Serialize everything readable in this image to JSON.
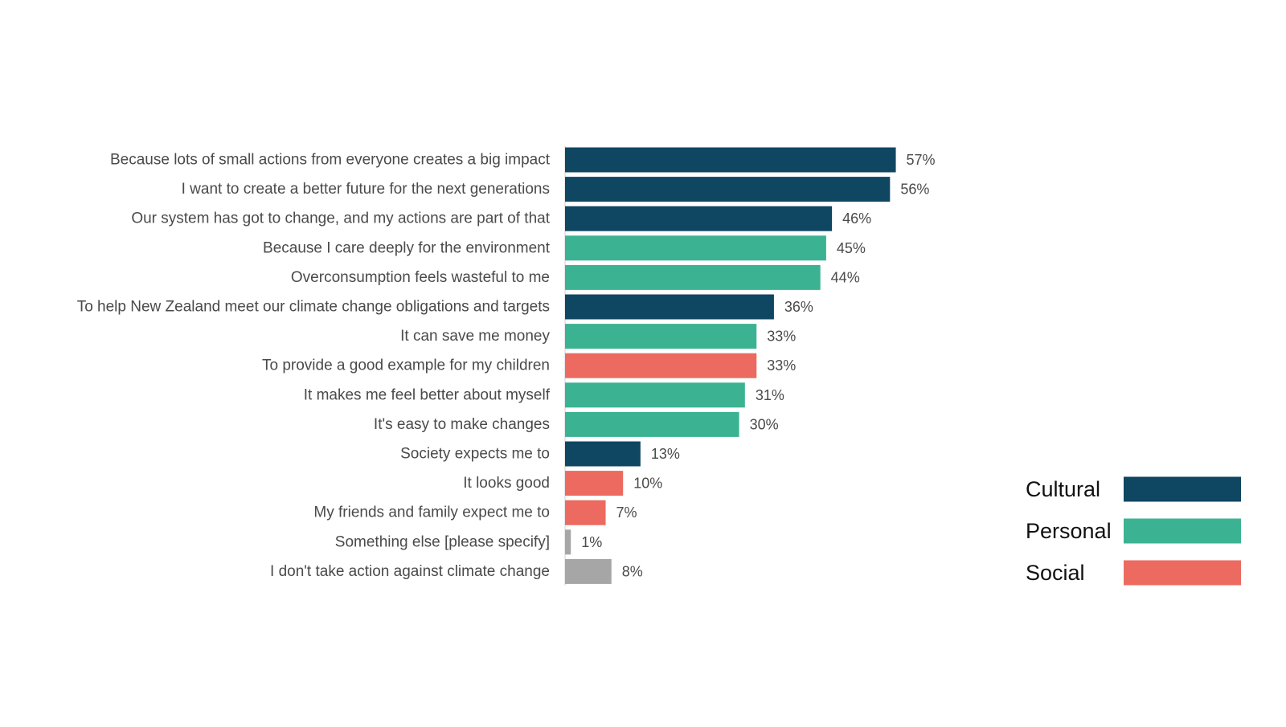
{
  "chart_data": {
    "type": "bar",
    "orientation": "horizontal",
    "title": "",
    "xlabel": "",
    "ylabel": "",
    "xlim": [
      0,
      100
    ],
    "grid": false,
    "legend_position": "right",
    "value_suffix": "%",
    "groups": [
      {
        "name": "Cultural",
        "color": "#0f4662"
      },
      {
        "name": "Personal",
        "color": "#3bb393"
      },
      {
        "name": "Social",
        "color": "#ec6a60"
      }
    ],
    "other_color": "#a6a6a6",
    "items": [
      {
        "label": "Because lots of small actions from everyone creates a big impact",
        "value": 57,
        "value_label": "57%",
        "group": "Cultural"
      },
      {
        "label": "I want to create a better future for the next generations",
        "value": 56,
        "value_label": "56%",
        "group": "Cultural"
      },
      {
        "label": "Our system has got to change, and my actions are part of that",
        "value": 46,
        "value_label": "46%",
        "group": "Cultural"
      },
      {
        "label": "Because I care deeply for the environment",
        "value": 45,
        "value_label": "45%",
        "group": "Personal"
      },
      {
        "label": "Overconsumption feels wasteful to me",
        "value": 44,
        "value_label": "44%",
        "group": "Personal"
      },
      {
        "label": "To help New Zealand meet our climate change obligations and targets",
        "value": 36,
        "value_label": "36%",
        "group": "Cultural"
      },
      {
        "label": "It can save me money",
        "value": 33,
        "value_label": "33%",
        "group": "Personal"
      },
      {
        "label": "To provide a good example for my children",
        "value": 33,
        "value_label": "33%",
        "group": "Social"
      },
      {
        "label": "It makes me feel better about myself",
        "value": 31,
        "value_label": "31%",
        "group": "Personal"
      },
      {
        "label": "It's easy to make changes",
        "value": 30,
        "value_label": "30%",
        "group": "Personal"
      },
      {
        "label": "Society expects me to",
        "value": 13,
        "value_label": "13%",
        "group": "Cultural"
      },
      {
        "label": "It looks good",
        "value": 10,
        "value_label": "10%",
        "group": "Social"
      },
      {
        "label": "My friends and family expect me to",
        "value": 7,
        "value_label": "7%",
        "group": "Social"
      },
      {
        "label": "Something else [please specify]",
        "value": 1,
        "value_label": "1%",
        "group": ""
      },
      {
        "label": "I don't take action against climate change",
        "value": 8,
        "value_label": "8%",
        "group": ""
      }
    ]
  }
}
